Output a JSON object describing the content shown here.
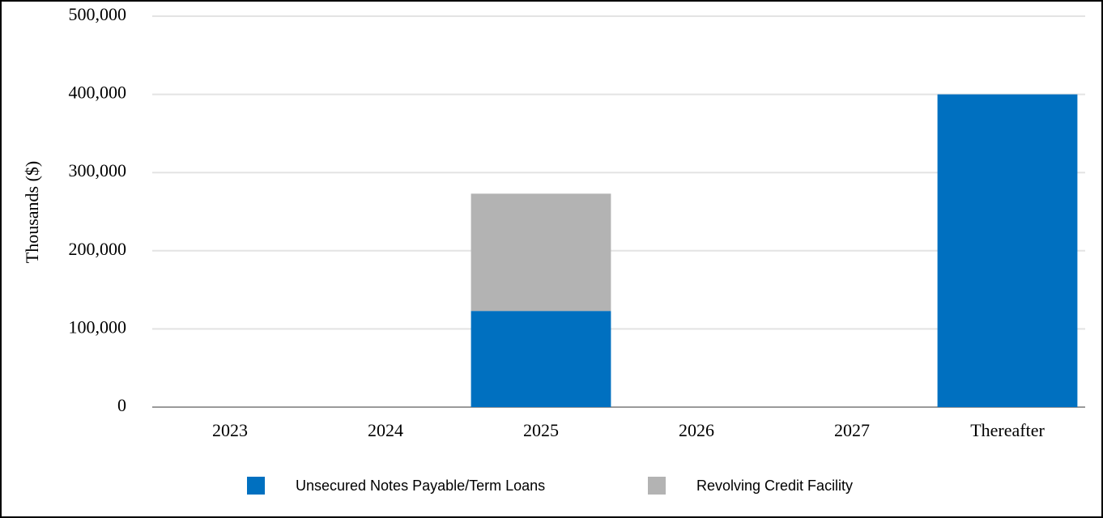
{
  "chart_data": {
    "type": "stacked-bar",
    "y_label": "Thousands ($)",
    "categories": [
      "2023",
      "2024",
      "2025",
      "2026",
      "2027",
      "Thereafter"
    ],
    "series": [
      {
        "name": "Unsecured Notes Payable/Term Loans",
        "color": "#0070c0",
        "values": [
          0,
          0,
          123000,
          0,
          0,
          400000
        ]
      },
      {
        "name": "Revolving Credit Facility",
        "color": "#b3b3b3",
        "values": [
          0,
          0,
          150000,
          0,
          0,
          0
        ]
      }
    ],
    "ylim": [
      0,
      500000
    ],
    "yticks": [
      0,
      {
        "value": 100000,
        "label": "100,000"
      },
      {
        "value": 200000,
        "label": "200,000"
      },
      {
        "value": 300000,
        "label": "300,000"
      },
      {
        "value": 400000,
        "label": "400,000"
      },
      {
        "value": 500000,
        "label": "500,000"
      }
    ],
    "grid": true,
    "legend": "bottom"
  }
}
